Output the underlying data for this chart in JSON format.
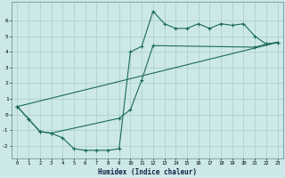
{
  "title": "",
  "xlabel": "Humidex (Indice chaleur)",
  "bg_color": "#cce8e8",
  "grid_color": "#aacccc",
  "line_color": "#1a6a5a",
  "xlim": [
    -0.5,
    23.5
  ],
  "ylim": [
    -2.8,
    7.2
  ],
  "xticks": [
    0,
    1,
    2,
    3,
    4,
    5,
    6,
    7,
    8,
    9,
    10,
    11,
    12,
    13,
    14,
    15,
    16,
    17,
    18,
    19,
    20,
    21,
    22,
    23
  ],
  "yticks": [
    -2,
    -1,
    0,
    1,
    2,
    3,
    4,
    5,
    6
  ],
  "line1_x": [
    0,
    1,
    2,
    3,
    4,
    5,
    6,
    7,
    8,
    9,
    10,
    11,
    12,
    13,
    14,
    15,
    16,
    17,
    18,
    19,
    20,
    21,
    22,
    23
  ],
  "line1_y": [
    0.5,
    -0.3,
    -1.1,
    -1.2,
    -1.5,
    -2.2,
    -2.3,
    -2.3,
    -2.3,
    -2.2,
    4.0,
    4.35,
    6.6,
    5.8,
    5.5,
    5.5,
    5.8,
    5.5,
    5.8,
    5.7,
    5.8,
    5.0,
    4.5,
    4.6
  ],
  "line2_x": [
    0,
    1,
    2,
    3,
    9,
    10,
    11,
    12,
    21,
    22,
    23
  ],
  "line2_y": [
    0.5,
    -0.3,
    -1.1,
    -1.2,
    -0.25,
    0.3,
    2.2,
    4.4,
    4.3,
    4.5,
    4.6
  ],
  "line3_x": [
    0,
    23
  ],
  "line3_y": [
    0.5,
    4.6
  ]
}
